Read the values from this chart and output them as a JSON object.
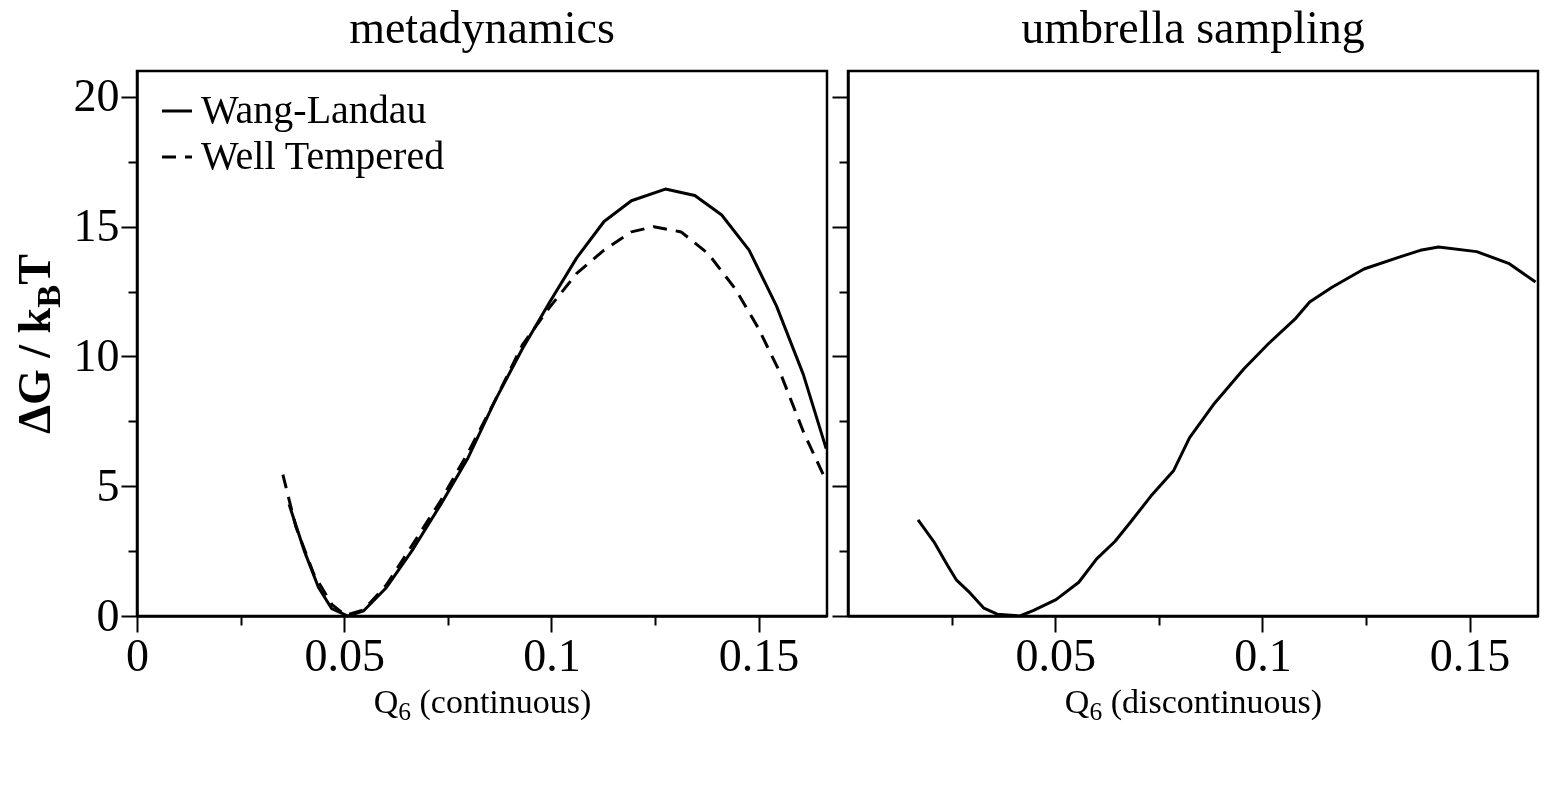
{
  "chart_data": [
    {
      "type": "line",
      "title": "metadynamics",
      "xlabel": "Q$_{6}$ (continuous)",
      "ylabel": "ΔG / k$_{B}$T",
      "xlim": [
        0,
        0.1665
      ],
      "ylim": [
        0,
        21
      ],
      "xticks": [
        0,
        {
          "value": 0.025,
          "label": null
        },
        0.05,
        {
          "value": 0.075,
          "label": null
        },
        0.1,
        {
          "value": 0.125,
          "label": null
        },
        0.15
      ],
      "yticks": [
        0,
        {
          "value": 2.5,
          "label": null
        },
        5,
        {
          "value": 7.5,
          "label": null
        },
        10,
        {
          "value": 12.5,
          "label": null
        },
        15,
        {
          "value": 17.5,
          "label": null
        },
        20
      ],
      "legend": "top left",
      "grid": false,
      "series": [
        {
          "name": "Wang-Landau",
          "color": "#000000",
          "line_style": "solid",
          "x": [
            0.0367,
            0.0405,
            0.0438,
            0.047,
            0.0509,
            0.0547,
            0.0602,
            0.0667,
            0.0733,
            0.0799,
            0.0864,
            0.093,
            0.0996,
            0.1061,
            0.1127,
            0.1193,
            0.1275,
            0.1346,
            0.1411,
            0.1477,
            0.1543,
            0.1608,
            0.1663
          ],
          "values": [
            4.3,
            2.45,
            1.1,
            0.28,
            0,
            0.2,
            1.1,
            2.6,
            4.3,
            6.1,
            8.3,
            10.3,
            12.1,
            13.8,
            15.2,
            16.0,
            16.45,
            16.2,
            15.45,
            14.1,
            11.95,
            9.3,
            6.45
          ]
        },
        {
          "name": "Well Tempered",
          "color": "#000000",
          "line_style": "dashed",
          "x": [
            0.0352,
            0.0383,
            0.0427,
            0.047,
            0.0503,
            0.0547,
            0.0602,
            0.0667,
            0.0733,
            0.0799,
            0.0864,
            0.093,
            0.0996,
            0.1061,
            0.1127,
            0.1193,
            0.1247,
            0.1313,
            0.1379,
            0.1444,
            0.1499,
            0.1554,
            0.1608,
            0.1663
          ],
          "values": [
            5.45,
            3.45,
            1.6,
            0.45,
            0.03,
            0.23,
            1.2,
            2.8,
            4.45,
            6.3,
            8.3,
            10.45,
            11.9,
            13.2,
            14.1,
            14.8,
            15.0,
            14.8,
            13.95,
            12.6,
            11.1,
            9.3,
            7.1,
            5.2
          ]
        }
      ]
    },
    {
      "type": "line",
      "title": "umbrella sampling",
      "xlabel": "Q$_{6}$  (discontinuous)",
      "xlim": [
        0,
        0.1665
      ],
      "ylim": [
        0,
        21
      ],
      "tick_labels": "x",
      "xticks": [
        {
          "value": 0.025,
          "label": null
        },
        0.05,
        {
          "value": 0.075,
          "label": null
        },
        0.1,
        {
          "value": 0.125,
          "label": null
        },
        0.15
      ],
      "yticks": [
        0,
        {
          "value": 2.5,
          "label": null
        },
        5,
        {
          "value": 7.5,
          "label": null
        },
        10,
        {
          "value": 12.5,
          "label": null
        },
        15,
        {
          "value": 17.5,
          "label": null
        },
        20
      ],
      "grid": false,
      "series": [
        {
          "color": "#000000",
          "line_style": "solid",
          "x": [
            0.0169,
            0.0207,
            0.024,
            0.0262,
            0.0295,
            0.0328,
            0.036,
            0.0415,
            0.0448,
            0.0502,
            0.0557,
            0.06,
            0.0644,
            0.0682,
            0.0731,
            0.0786,
            0.0824,
            0.0884,
            0.0955,
            0.1015,
            0.1081,
            0.1114,
            0.1168,
            0.1245,
            0.1332,
            0.1381,
            0.1425,
            0.1517,
            0.1594,
            0.1659
          ],
          "values": [
            3.7,
            2.87,
            1.96,
            1.38,
            0.88,
            0.3,
            0.07,
            0,
            0.22,
            0.63,
            1.3,
            2.2,
            2.87,
            3.62,
            4.62,
            5.61,
            6.86,
            8.19,
            9.52,
            10.5,
            11.48,
            12.1,
            12.67,
            13.37,
            13.84,
            14.09,
            14.22,
            14.04,
            13.59,
            12.87
          ]
        }
      ]
    }
  ]
}
